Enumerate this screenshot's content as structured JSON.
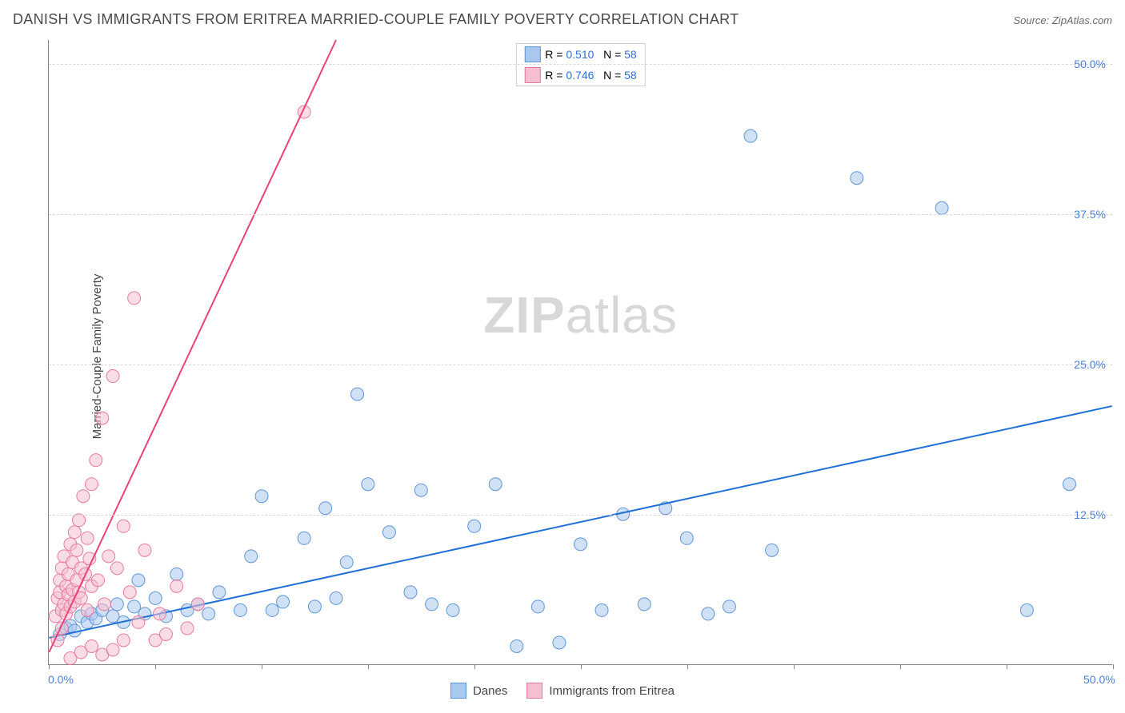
{
  "title": "DANISH VS IMMIGRANTS FROM ERITREA MARRIED-COUPLE FAMILY POVERTY CORRELATION CHART",
  "source": "Source: ZipAtlas.com",
  "y_axis_label": "Married-Couple Family Poverty",
  "watermark_zip": "ZIP",
  "watermark_atlas": "atlas",
  "chart": {
    "type": "scatter",
    "xlim": [
      0,
      50
    ],
    "ylim": [
      0,
      52
    ],
    "x_ticks": [
      0,
      5,
      10,
      15,
      20,
      25,
      30,
      35,
      40,
      45,
      50
    ],
    "x_tick_labels": {
      "0": "0.0%",
      "50": "50.0%"
    },
    "y_ticks": [
      12.5,
      25.0,
      37.5,
      50.0
    ],
    "y_tick_labels": [
      "12.5%",
      "25.0%",
      "37.5%",
      "50.0%"
    ],
    "grid_color": "#d8d8d8",
    "background_color": "#ffffff",
    "axis_color": "#888888",
    "label_color": "#4a7fd8",
    "marker_radius": 8,
    "marker_opacity": 0.55,
    "line_width": 2,
    "series": [
      {
        "name": "Danes",
        "color_fill": "#a9c8ee",
        "color_stroke": "#5f95d8",
        "line_color": "#1e6fd6",
        "legend_label": "Danes",
        "R": "0.510",
        "N": "58",
        "trend": {
          "x1": 0,
          "y1": 2.2,
          "x2": 50,
          "y2": 21.5
        },
        "points": [
          [
            0.5,
            2.5
          ],
          [
            0.8,
            3.0
          ],
          [
            1.0,
            3.2
          ],
          [
            1.2,
            2.8
          ],
          [
            1.5,
            4.0
          ],
          [
            1.8,
            3.5
          ],
          [
            2.0,
            4.2
          ],
          [
            2.2,
            3.8
          ],
          [
            2.5,
            4.5
          ],
          [
            3.0,
            4.0
          ],
          [
            3.2,
            5.0
          ],
          [
            3.5,
            3.5
          ],
          [
            4.0,
            4.8
          ],
          [
            4.2,
            7.0
          ],
          [
            4.5,
            4.2
          ],
          [
            5.0,
            5.5
          ],
          [
            5.5,
            4.0
          ],
          [
            6.0,
            7.5
          ],
          [
            6.5,
            4.5
          ],
          [
            7.0,
            5.0
          ],
          [
            7.5,
            4.2
          ],
          [
            8.0,
            6.0
          ],
          [
            9.0,
            4.5
          ],
          [
            9.5,
            9.0
          ],
          [
            10.0,
            14.0
          ],
          [
            10.5,
            4.5
          ],
          [
            11.0,
            5.2
          ],
          [
            12.0,
            10.5
          ],
          [
            12.5,
            4.8
          ],
          [
            13.0,
            13.0
          ],
          [
            13.5,
            5.5
          ],
          [
            14.0,
            8.5
          ],
          [
            14.5,
            22.5
          ],
          [
            15.0,
            15.0
          ],
          [
            16.0,
            11.0
          ],
          [
            17.0,
            6.0
          ],
          [
            17.5,
            14.5
          ],
          [
            18.0,
            5.0
          ],
          [
            19.0,
            4.5
          ],
          [
            20.0,
            11.5
          ],
          [
            21.0,
            15.0
          ],
          [
            22.0,
            1.5
          ],
          [
            23.0,
            4.8
          ],
          [
            24.0,
            1.8
          ],
          [
            25.0,
            10.0
          ],
          [
            26.0,
            4.5
          ],
          [
            27.0,
            12.5
          ],
          [
            28.0,
            5.0
          ],
          [
            29.0,
            13.0
          ],
          [
            30.0,
            10.5
          ],
          [
            31.0,
            4.2
          ],
          [
            32.0,
            4.8
          ],
          [
            33.0,
            44.0
          ],
          [
            34.0,
            9.5
          ],
          [
            38.0,
            40.5
          ],
          [
            42.0,
            38.0
          ],
          [
            46.0,
            4.5
          ],
          [
            48.0,
            15.0
          ]
        ]
      },
      {
        "name": "Immigrants from Eritrea",
        "color_fill": "#f6bfcf",
        "color_stroke": "#e77aa0",
        "line_color": "#e8437a",
        "legend_label": "Immigrants from Eritrea",
        "R": "0.746",
        "N": "58",
        "trend": {
          "x1": 0,
          "y1": 1.0,
          "x2": 13.5,
          "y2": 52.0
        },
        "points": [
          [
            0.3,
            4.0
          ],
          [
            0.4,
            5.5
          ],
          [
            0.5,
            6.0
          ],
          [
            0.5,
            7.0
          ],
          [
            0.6,
            4.5
          ],
          [
            0.6,
            8.0
          ],
          [
            0.7,
            5.0
          ],
          [
            0.7,
            9.0
          ],
          [
            0.8,
            4.2
          ],
          [
            0.8,
            6.5
          ],
          [
            0.9,
            5.8
          ],
          [
            0.9,
            7.5
          ],
          [
            1.0,
            4.8
          ],
          [
            1.0,
            10.0
          ],
          [
            1.1,
            6.2
          ],
          [
            1.1,
            8.5
          ],
          [
            1.2,
            5.2
          ],
          [
            1.2,
            11.0
          ],
          [
            1.3,
            7.0
          ],
          [
            1.3,
            9.5
          ],
          [
            1.4,
            6.0
          ],
          [
            1.4,
            12.0
          ],
          [
            1.5,
            8.0
          ],
          [
            1.5,
            5.5
          ],
          [
            1.6,
            14.0
          ],
          [
            1.7,
            7.5
          ],
          [
            1.8,
            4.5
          ],
          [
            1.8,
            10.5
          ],
          [
            1.9,
            8.8
          ],
          [
            2.0,
            15.0
          ],
          [
            2.0,
            6.5
          ],
          [
            2.2,
            17.0
          ],
          [
            2.3,
            7.0
          ],
          [
            2.5,
            20.5
          ],
          [
            2.6,
            5.0
          ],
          [
            2.8,
            9.0
          ],
          [
            3.0,
            24.0
          ],
          [
            3.2,
            8.0
          ],
          [
            3.5,
            11.5
          ],
          [
            3.8,
            6.0
          ],
          [
            4.0,
            30.5
          ],
          [
            4.2,
            3.5
          ],
          [
            4.5,
            9.5
          ],
          [
            5.0,
            2.0
          ],
          [
            5.2,
            4.2
          ],
          [
            5.5,
            2.5
          ],
          [
            6.0,
            6.5
          ],
          [
            6.5,
            3.0
          ],
          [
            7.0,
            5.0
          ],
          [
            12.0,
            46.0
          ],
          [
            1.0,
            0.5
          ],
          [
            1.5,
            1.0
          ],
          [
            2.0,
            1.5
          ],
          [
            2.5,
            0.8
          ],
          [
            3.0,
            1.2
          ],
          [
            3.5,
            2.0
          ],
          [
            0.4,
            2.0
          ],
          [
            0.6,
            3.0
          ]
        ]
      }
    ]
  },
  "legend_top_labels": {
    "R_prefix": "R = ",
    "N_prefix": "N = "
  },
  "bottom_legend": [
    "Danes",
    "Immigrants from Eritrea"
  ]
}
